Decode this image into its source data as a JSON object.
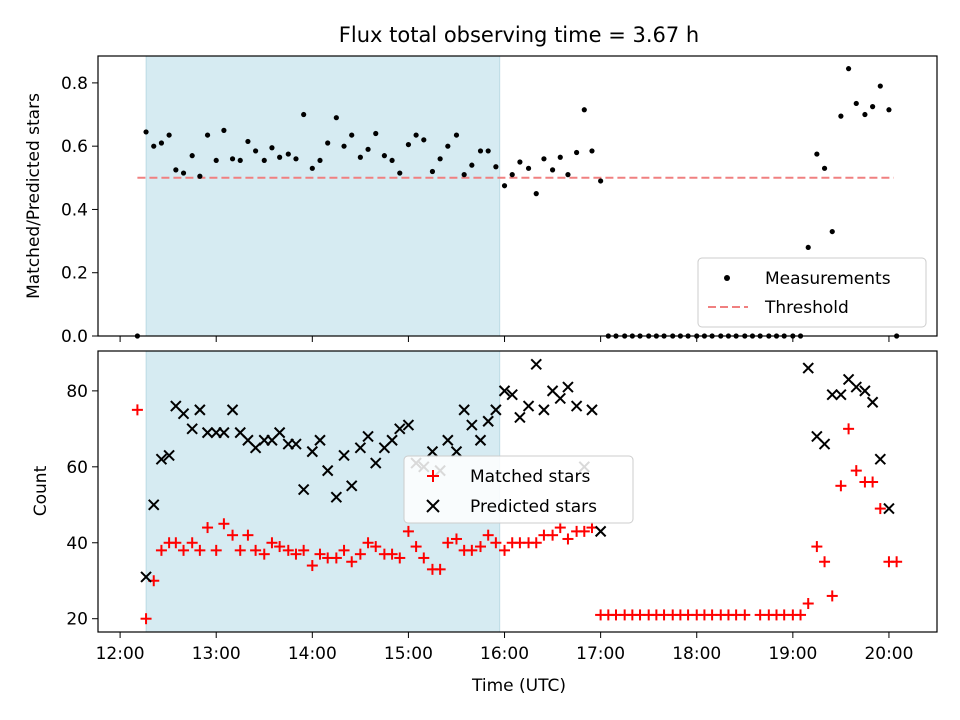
{
  "title": "Flux total observing time = 3.67 h",
  "chart_data": [
    {
      "type": "scatter",
      "ylabel": "Matched/Predicted stars",
      "ylim": [
        0,
        0.885
      ],
      "xlim": [
        11.77,
        20.5
      ],
      "yticks": [
        0.0,
        0.2,
        0.4,
        0.6,
        0.8
      ],
      "ytick_labels": [
        "0.0",
        "0.2",
        "0.4",
        "0.6",
        "0.8"
      ],
      "shaded_span": {
        "x0": 12.27,
        "x1": 15.95,
        "color": "#add8e6"
      },
      "threshold": {
        "name": "Threshold",
        "y": 0.5,
        "x0": 12.18,
        "x1": 20.05,
        "color": "#f08080"
      },
      "legend": {
        "placement": "lower-right"
      },
      "series": [
        {
          "name": "Measurements",
          "marker": "dot",
          "color": "#000000",
          "points": [
            [
              12.18,
              0.0
            ],
            [
              12.27,
              0.645
            ],
            [
              12.35,
              0.6
            ],
            [
              12.43,
              0.61
            ],
            [
              12.51,
              0.635
            ],
            [
              12.58,
              0.525
            ],
            [
              12.66,
              0.515
            ],
            [
              12.75,
              0.57
            ],
            [
              12.83,
              0.505
            ],
            [
              12.91,
              0.635
            ],
            [
              13.0,
              0.555
            ],
            [
              13.08,
              0.65
            ],
            [
              13.17,
              0.56
            ],
            [
              13.25,
              0.555
            ],
            [
              13.33,
              0.615
            ],
            [
              13.41,
              0.585
            ],
            [
              13.5,
              0.555
            ],
            [
              13.58,
              0.595
            ],
            [
              13.66,
              0.565
            ],
            [
              13.75,
              0.575
            ],
            [
              13.83,
              0.56
            ],
            [
              13.91,
              0.7
            ],
            [
              14.0,
              0.53
            ],
            [
              14.08,
              0.555
            ],
            [
              14.16,
              0.61
            ],
            [
              14.25,
              0.69
            ],
            [
              14.33,
              0.6
            ],
            [
              14.41,
              0.635
            ],
            [
              14.5,
              0.565
            ],
            [
              14.58,
              0.59
            ],
            [
              14.66,
              0.64
            ],
            [
              14.75,
              0.57
            ],
            [
              14.83,
              0.555
            ],
            [
              14.91,
              0.515
            ],
            [
              15.0,
              0.605
            ],
            [
              15.08,
              0.635
            ],
            [
              15.16,
              0.62
            ],
            [
              15.25,
              0.52
            ],
            [
              15.33,
              0.56
            ],
            [
              15.41,
              0.6
            ],
            [
              15.5,
              0.635
            ],
            [
              15.58,
              0.51
            ],
            [
              15.66,
              0.54
            ],
            [
              15.75,
              0.585
            ],
            [
              15.83,
              0.585
            ],
            [
              15.91,
              0.535
            ],
            [
              16.0,
              0.475
            ],
            [
              16.08,
              0.51
            ],
            [
              16.16,
              0.55
            ],
            [
              16.25,
              0.53
            ],
            [
              16.33,
              0.45
            ],
            [
              16.41,
              0.56
            ],
            [
              16.5,
              0.525
            ],
            [
              16.58,
              0.565
            ],
            [
              16.66,
              0.51
            ],
            [
              16.75,
              0.58
            ],
            [
              16.83,
              0.715
            ],
            [
              16.91,
              0.585
            ],
            [
              17.0,
              0.49
            ],
            [
              17.08,
              0.0
            ],
            [
              17.16,
              0.0
            ],
            [
              17.25,
              0.0
            ],
            [
              17.33,
              0.0
            ],
            [
              17.41,
              0.0
            ],
            [
              17.5,
              0.0
            ],
            [
              17.58,
              0.0
            ],
            [
              17.66,
              0.0
            ],
            [
              17.75,
              0.0
            ],
            [
              17.83,
              0.0
            ],
            [
              17.91,
              0.0
            ],
            [
              18.0,
              0.0
            ],
            [
              18.08,
              0.0
            ],
            [
              18.16,
              0.0
            ],
            [
              18.25,
              0.0
            ],
            [
              18.33,
              0.0
            ],
            [
              18.41,
              0.0
            ],
            [
              18.5,
              0.0
            ],
            [
              18.58,
              0.0
            ],
            [
              18.66,
              0.0
            ],
            [
              18.75,
              0.0
            ],
            [
              18.83,
              0.0
            ],
            [
              18.91,
              0.0
            ],
            [
              19.0,
              0.0
            ],
            [
              19.08,
              0.0
            ],
            [
              19.16,
              0.28
            ],
            [
              19.25,
              0.575
            ],
            [
              19.33,
              0.53
            ],
            [
              19.41,
              0.33
            ],
            [
              19.5,
              0.695
            ],
            [
              19.58,
              0.845
            ],
            [
              19.66,
              0.735
            ],
            [
              19.75,
              0.7
            ],
            [
              19.83,
              0.725
            ],
            [
              19.91,
              0.79
            ],
            [
              20.0,
              0.715
            ],
            [
              20.08,
              0.0
            ]
          ]
        }
      ]
    },
    {
      "type": "scatter",
      "xlabel": "Time (UTC)",
      "ylabel": "Count",
      "ylim": [
        16.5,
        90.5
      ],
      "xlim": [
        11.77,
        20.5
      ],
      "yticks": [
        20,
        40,
        60,
        80
      ],
      "ytick_labels": [
        "20",
        "40",
        "60",
        "80"
      ],
      "xticks": [
        12,
        13,
        14,
        15,
        16,
        17,
        18,
        19,
        20
      ],
      "xtick_labels": [
        "12:00",
        "13:00",
        "14:00",
        "15:00",
        "16:00",
        "17:00",
        "18:00",
        "19:00",
        "20:00"
      ],
      "shaded_span": {
        "x0": 12.27,
        "x1": 15.95,
        "color": "#add8e6"
      },
      "legend": {
        "placement": "center"
      },
      "series": [
        {
          "name": "Matched stars",
          "marker": "plus",
          "color": "#ff0000",
          "points": [
            [
              12.18,
              75
            ],
            [
              12.27,
              20
            ],
            [
              12.35,
              30
            ],
            [
              12.43,
              38
            ],
            [
              12.51,
              40
            ],
            [
              12.58,
              40
            ],
            [
              12.66,
              38
            ],
            [
              12.75,
              40
            ],
            [
              12.83,
              38
            ],
            [
              12.91,
              44
            ],
            [
              13.0,
              38
            ],
            [
              13.08,
              45
            ],
            [
              13.17,
              42
            ],
            [
              13.25,
              38
            ],
            [
              13.33,
              42
            ],
            [
              13.41,
              38
            ],
            [
              13.5,
              37
            ],
            [
              13.58,
              40
            ],
            [
              13.66,
              39
            ],
            [
              13.75,
              38
            ],
            [
              13.83,
              37
            ],
            [
              13.91,
              38
            ],
            [
              14.0,
              34
            ],
            [
              14.08,
              37
            ],
            [
              14.16,
              36
            ],
            [
              14.25,
              36
            ],
            [
              14.33,
              38
            ],
            [
              14.41,
              35
            ],
            [
              14.5,
              37
            ],
            [
              14.58,
              40
            ],
            [
              14.66,
              39
            ],
            [
              14.75,
              37
            ],
            [
              14.83,
              37
            ],
            [
              14.91,
              36
            ],
            [
              15.0,
              43
            ],
            [
              15.08,
              39
            ],
            [
              15.16,
              36
            ],
            [
              15.25,
              33
            ],
            [
              15.33,
              33
            ],
            [
              15.41,
              40
            ],
            [
              15.5,
              41
            ],
            [
              15.58,
              38
            ],
            [
              15.66,
              38
            ],
            [
              15.75,
              39
            ],
            [
              15.83,
              42
            ],
            [
              15.91,
              40
            ],
            [
              16.0,
              38
            ],
            [
              16.08,
              40
            ],
            [
              16.16,
              40
            ],
            [
              16.25,
              40
            ],
            [
              16.33,
              40
            ],
            [
              16.41,
              42
            ],
            [
              16.5,
              42
            ],
            [
              16.58,
              44
            ],
            [
              16.66,
              41
            ],
            [
              16.75,
              43
            ],
            [
              16.83,
              43
            ],
            [
              16.91,
              44
            ],
            [
              17.0,
              21
            ],
            [
              17.08,
              21
            ],
            [
              17.16,
              21
            ],
            [
              17.25,
              21
            ],
            [
              17.33,
              21
            ],
            [
              17.41,
              21
            ],
            [
              17.5,
              21
            ],
            [
              17.58,
              21
            ],
            [
              17.66,
              21
            ],
            [
              17.75,
              21
            ],
            [
              17.83,
              21
            ],
            [
              17.91,
              21
            ],
            [
              18.0,
              21
            ],
            [
              18.08,
              21
            ],
            [
              18.16,
              21
            ],
            [
              18.25,
              21
            ],
            [
              18.33,
              21
            ],
            [
              18.41,
              21
            ],
            [
              18.5,
              21
            ],
            [
              18.66,
              21
            ],
            [
              18.75,
              21
            ],
            [
              18.83,
              21
            ],
            [
              18.91,
              21
            ],
            [
              19.0,
              21
            ],
            [
              19.08,
              21
            ],
            [
              19.16,
              24
            ],
            [
              19.25,
              39
            ],
            [
              19.33,
              35
            ],
            [
              19.41,
              26
            ],
            [
              19.5,
              55
            ],
            [
              19.58,
              70
            ],
            [
              19.66,
              59
            ],
            [
              19.75,
              56
            ],
            [
              19.83,
              56
            ],
            [
              19.91,
              49
            ],
            [
              20.0,
              35
            ],
            [
              20.08,
              35
            ]
          ]
        },
        {
          "name": "Predicted stars",
          "marker": "x",
          "color": "#000000",
          "points": [
            [
              12.27,
              31
            ],
            [
              12.35,
              50
            ],
            [
              12.43,
              62
            ],
            [
              12.51,
              63
            ],
            [
              12.58,
              76
            ],
            [
              12.66,
              74
            ],
            [
              12.75,
              70
            ],
            [
              12.83,
              75
            ],
            [
              12.91,
              69
            ],
            [
              13.0,
              69
            ],
            [
              13.08,
              69
            ],
            [
              13.17,
              75
            ],
            [
              13.25,
              69
            ],
            [
              13.33,
              67
            ],
            [
              13.41,
              65
            ],
            [
              13.5,
              67
            ],
            [
              13.58,
              67
            ],
            [
              13.66,
              69
            ],
            [
              13.75,
              66
            ],
            [
              13.83,
              66
            ],
            [
              13.91,
              54
            ],
            [
              14.0,
              64
            ],
            [
              14.08,
              67
            ],
            [
              14.16,
              59
            ],
            [
              14.25,
              52
            ],
            [
              14.33,
              63
            ],
            [
              14.41,
              55
            ],
            [
              14.5,
              65
            ],
            [
              14.58,
              68
            ],
            [
              14.66,
              61
            ],
            [
              14.75,
              65
            ],
            [
              14.83,
              67
            ],
            [
              14.91,
              70
            ],
            [
              15.0,
              71
            ],
            [
              15.08,
              61
            ],
            [
              15.16,
              60
            ],
            [
              15.25,
              64
            ],
            [
              15.33,
              59
            ],
            [
              15.41,
              67
            ],
            [
              15.5,
              64
            ],
            [
              15.58,
              75
            ],
            [
              15.66,
              71
            ],
            [
              15.75,
              67
            ],
            [
              15.83,
              72
            ],
            [
              15.91,
              75
            ],
            [
              16.0,
              80
            ],
            [
              16.08,
              79
            ],
            [
              16.16,
              73
            ],
            [
              16.25,
              76
            ],
            [
              16.33,
              87
            ],
            [
              16.41,
              75
            ],
            [
              16.5,
              80
            ],
            [
              16.58,
              78
            ],
            [
              16.66,
              81
            ],
            [
              16.75,
              76
            ],
            [
              16.83,
              60
            ],
            [
              16.91,
              75
            ],
            [
              17.0,
              43
            ],
            [
              19.16,
              86
            ],
            [
              19.25,
              68
            ],
            [
              19.33,
              66
            ],
            [
              19.41,
              79
            ],
            [
              19.5,
              79
            ],
            [
              19.58,
              83
            ],
            [
              19.66,
              81
            ],
            [
              19.75,
              80
            ],
            [
              19.83,
              77
            ],
            [
              19.91,
              62
            ],
            [
              20.0,
              49
            ]
          ]
        }
      ]
    }
  ]
}
